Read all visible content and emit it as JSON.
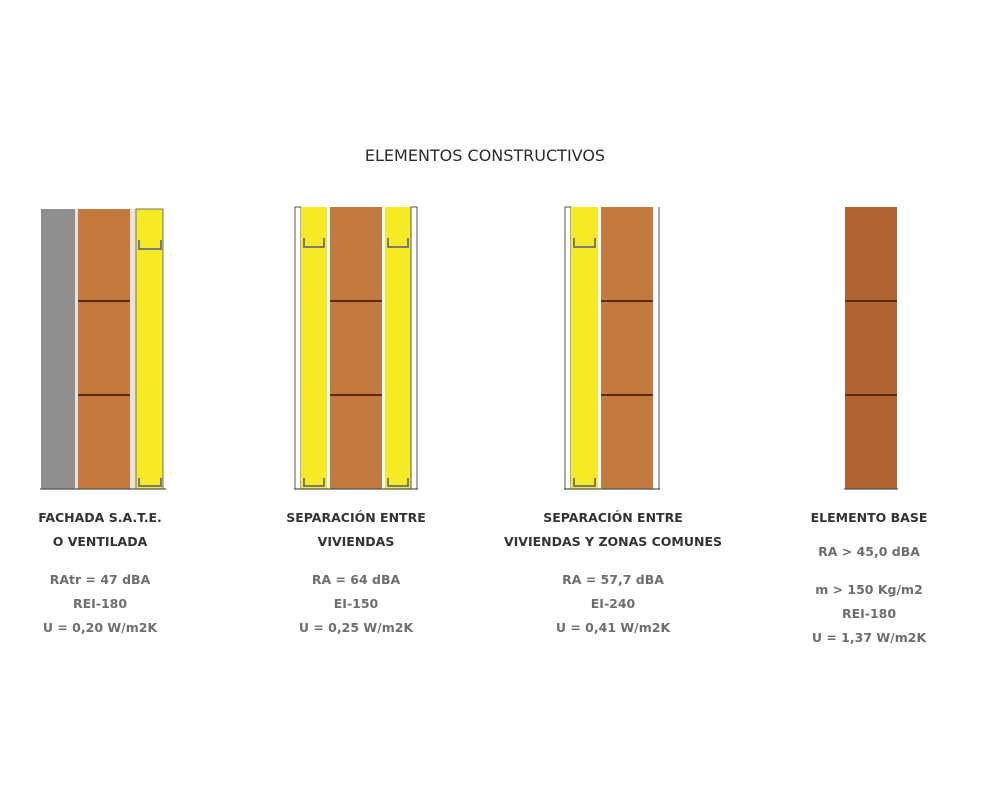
{
  "title": "ELEMENTOS CONSTRUCTIVOS",
  "colors": {
    "brick": "#c4793f",
    "brick_dark": "#b1642f",
    "brick_line": "#5a2a12",
    "insulation": "#f6ea26",
    "concrete": "#8f8f8f",
    "outline": "#555555",
    "profile": "#7a7a7a"
  },
  "elements": [
    {
      "title_line1": "FACHADA S.A.T.E.",
      "title_line2": "O VENTILADA",
      "props": [
        "RAtr = 47 dBA",
        "REI-180",
        "U = 0,20 W/m2K"
      ]
    },
    {
      "title_line1": "SEPARACIÓN ENTRE",
      "title_line2": "VIVIENDAS",
      "props": [
        "RA = 64 dBA",
        "EI-150",
        "U = 0,25 W/m2K"
      ]
    },
    {
      "title_line1": "SEPARACIÓN ENTRE",
      "title_line2": "VIVIENDAS Y ZONAS COMUNES",
      "props": [
        "RA = 57,7 dBA",
        "EI-240",
        "U = 0,41 W/m2K"
      ]
    },
    {
      "title_line1": "ELEMENTO BASE",
      "props_top": [
        "RA > 45,0 dBA"
      ],
      "props": [
        "m > 150 Kg/m2",
        "REI-180",
        "U = 1,37 W/m2K"
      ]
    }
  ]
}
